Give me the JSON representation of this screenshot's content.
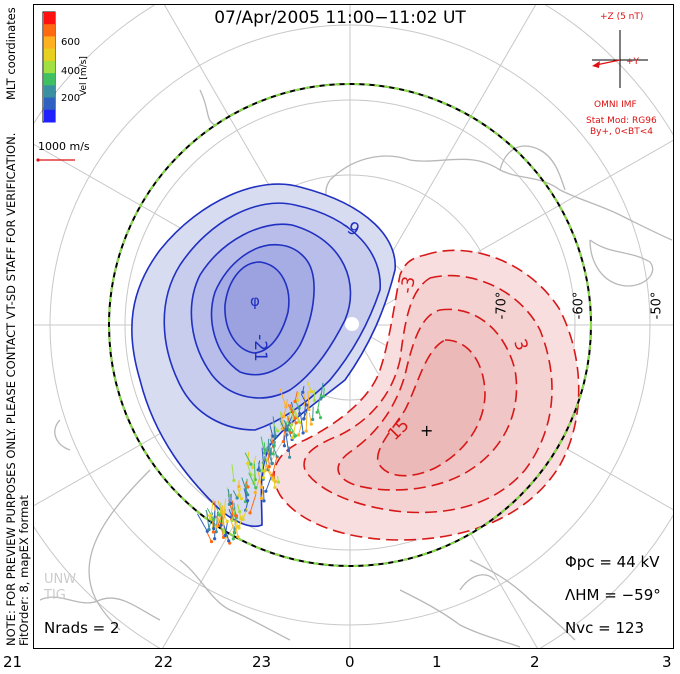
{
  "title": "07/Apr/2005 11:00−11:02 UT",
  "side_text": {
    "note": "NOTE: FOR PREVIEW PURPOSES ONLY. PLEASE CONTACT VT-SD STAFF FOR VERIFICATION.",
    "fit": "FitOrder: 8, mapEX format",
    "coords": "MLT coordinates"
  },
  "colorbar": {
    "label": "Vel [m/s]",
    "ticks": [
      "600",
      "400",
      "200"
    ],
    "colors": [
      "#ff1010",
      "#ff6a10",
      "#ffb020",
      "#e8d020",
      "#a0e040",
      "#40c060",
      "#3a8fa0",
      "#3060c0",
      "#2020ff"
    ]
  },
  "vector_scale": {
    "label": "1000 m/s"
  },
  "imf": {
    "z_label": "+Z (5 nT)",
    "y_label": "+Y",
    "source": "OMNI IMF",
    "model_line1": "Stat Mod: RG96",
    "model_line2": "By+, 0<BT<4"
  },
  "contours": {
    "labels": [
      "-9",
      "-21",
      "-3",
      "3",
      "15",
      "3"
    ],
    "min_marker": "φ",
    "max_marker": "+"
  },
  "latitude_labels": [
    "-70°",
    "-60°",
    "-50°"
  ],
  "stats": {
    "phi_pc": "Φpc = 44 kV",
    "lambda_hm": "ΛHM = −59°",
    "n_vc": "Nvc = 123",
    "n_rads": "Nrads = 2"
  },
  "watermark": [
    "UNW",
    "TIG"
  ],
  "mlt_ticks": [
    "21",
    "22",
    "23",
    "0",
    "1",
    "2",
    "3"
  ]
}
